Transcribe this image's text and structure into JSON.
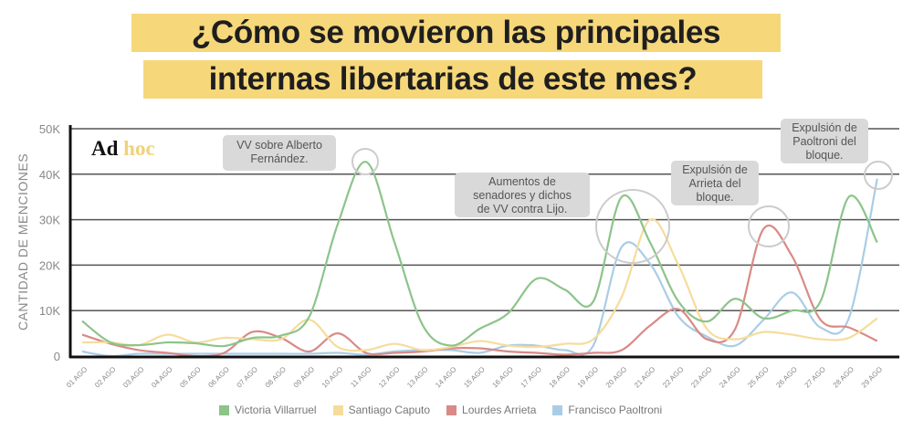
{
  "title_lines": [
    "¿Cómo se movieron las principales",
    "internas libertarias de este mes?"
  ],
  "logo": {
    "part1": "Ad",
    "part2": "hoc",
    "color1": "#111111",
    "color2": "#f0d27a"
  },
  "annotations": [
    {
      "text": "VV sobre Alberto\nFernández.",
      "day": "11 AGO"
    },
    {
      "text": "Aumentos de\nsenadores y dichos\nde VV contra Lijo.",
      "day": "20 AGO"
    },
    {
      "text": "Expulsión de\nArrieta del\nbloque.",
      "day": "25 AGO"
    },
    {
      "text": "Expulsión de\nPaoltroni del\nbloque.",
      "day": "29 AGO"
    }
  ],
  "chart_data": {
    "type": "line",
    "title": "¿Cómo se movieron las principales internas libertarias de este mes?",
    "xlabel": "",
    "ylabel": "CANTIDAD DE MENCIONES",
    "ylim": [
      0,
      50000
    ],
    "yticks": [
      0,
      10000,
      20000,
      30000,
      40000,
      50000
    ],
    "ytick_labels": [
      "0",
      "10K",
      "20K",
      "30K",
      "40K",
      "50K"
    ],
    "grid": true,
    "legend_position": "bottom",
    "x": [
      "01 AGO",
      "02 AGO",
      "03 AGO",
      "04 AGO",
      "05 AGO",
      "06 AGO",
      "07 AGO",
      "08 AGO",
      "09 AGO",
      "10 AGO",
      "11 AGO",
      "12 AGO",
      "13 AGO",
      "14 AGO",
      "15 AGO",
      "16 AGO",
      "17 AGO",
      "18 AGO",
      "19 AGO",
      "20 AGO",
      "21 AGO",
      "22 AGO",
      "23 AGO",
      "24 AGO",
      "25 AGO",
      "26 AGO",
      "27 AGO",
      "28 AGO",
      "29 AGO"
    ],
    "series": [
      {
        "name": "Victoria Villarruel",
        "color": "#8cc48a",
        "values": [
          7700,
          3000,
          2400,
          3000,
          2800,
          2200,
          4000,
          4500,
          8700,
          29000,
          42700,
          25000,
          6700,
          2300,
          6000,
          9400,
          17000,
          14600,
          12000,
          35000,
          25000,
          12000,
          7600,
          12600,
          8300,
          10000,
          12000,
          35000,
          25000
        ]
      },
      {
        "name": "Santiago Caputo",
        "color": "#f6dc9c",
        "values": [
          3000,
          3000,
          2400,
          4700,
          3000,
          4000,
          3700,
          3700,
          8000,
          2000,
          1300,
          2700,
          1300,
          2000,
          3300,
          2300,
          2000,
          2700,
          3700,
          13000,
          30000,
          20000,
          6000,
          3700,
          5300,
          4700,
          3700,
          4000,
          8300
        ]
      },
      {
        "name": "Lourdes Arrieta",
        "color": "#d98a86",
        "values": [
          4700,
          2700,
          1300,
          700,
          0,
          700,
          5300,
          4000,
          1000,
          5000,
          700,
          700,
          1000,
          1700,
          1700,
          1000,
          700,
          300,
          700,
          1300,
          6700,
          10300,
          3700,
          6000,
          28000,
          22000,
          8000,
          6300,
          3300
        ]
      },
      {
        "name": "Francisco Paoltroni",
        "color": "#a9cde6",
        "values": [
          1000,
          0,
          500,
          500,
          500,
          500,
          500,
          500,
          500,
          700,
          300,
          1000,
          1300,
          1300,
          700,
          2300,
          2300,
          1300,
          2300,
          24000,
          20300,
          8700,
          4300,
          2300,
          8000,
          14000,
          6300,
          8300,
          39000
        ]
      }
    ]
  }
}
